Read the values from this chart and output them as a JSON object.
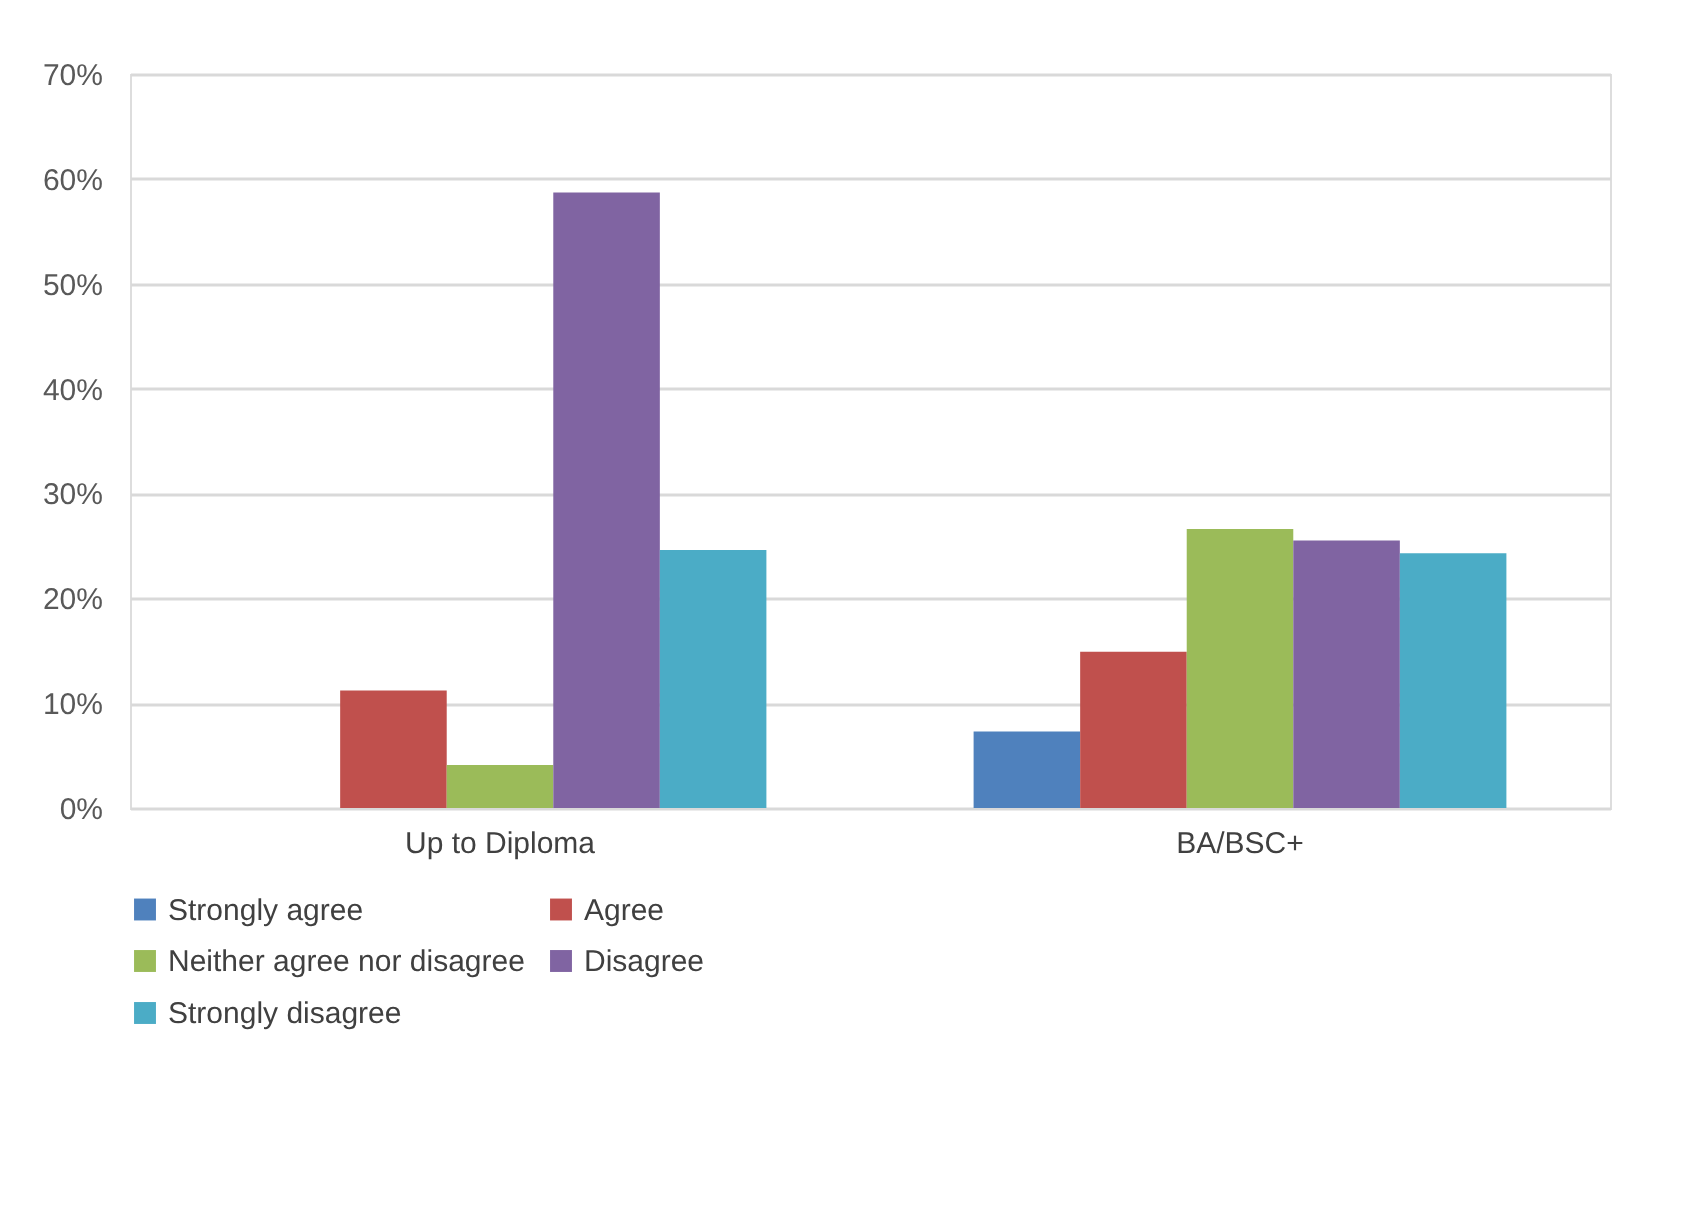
{
  "chart_data": {
    "type": "bar",
    "categories": [
      "Up to Diploma",
      "BA/BSC+"
    ],
    "series": [
      {
        "name": "Strongly agree",
        "color": "#4f81bd",
        "values": [
          0,
          7.3
        ]
      },
      {
        "name": "Agree",
        "color": "#c0504d",
        "values": [
          11.2,
          14.9
        ]
      },
      {
        "name": "Neither agree nor disagree",
        "color": "#9bbb59",
        "values": [
          4.1,
          26.6
        ]
      },
      {
        "name": "Disagree",
        "color": "#8064a2",
        "values": [
          58.7,
          25.5
        ]
      },
      {
        "name": "Strongly disagree",
        "color": "#4bacc6",
        "values": [
          24.6,
          24.3
        ]
      }
    ],
    "ylim": [
      0,
      70
    ],
    "yticks": [
      {
        "value": 0,
        "label": "0%"
      },
      {
        "value": 10,
        "label": "10%"
      },
      {
        "value": 20,
        "label": "20%"
      },
      {
        "value": 30,
        "label": "30%"
      },
      {
        "value": 40,
        "label": "40%"
      },
      {
        "value": 50,
        "label": "50%"
      },
      {
        "value": 60,
        "label": "60%"
      },
      {
        "value": 70,
        "label": "70%"
      }
    ],
    "grid": "y",
    "legend": "bottom"
  }
}
